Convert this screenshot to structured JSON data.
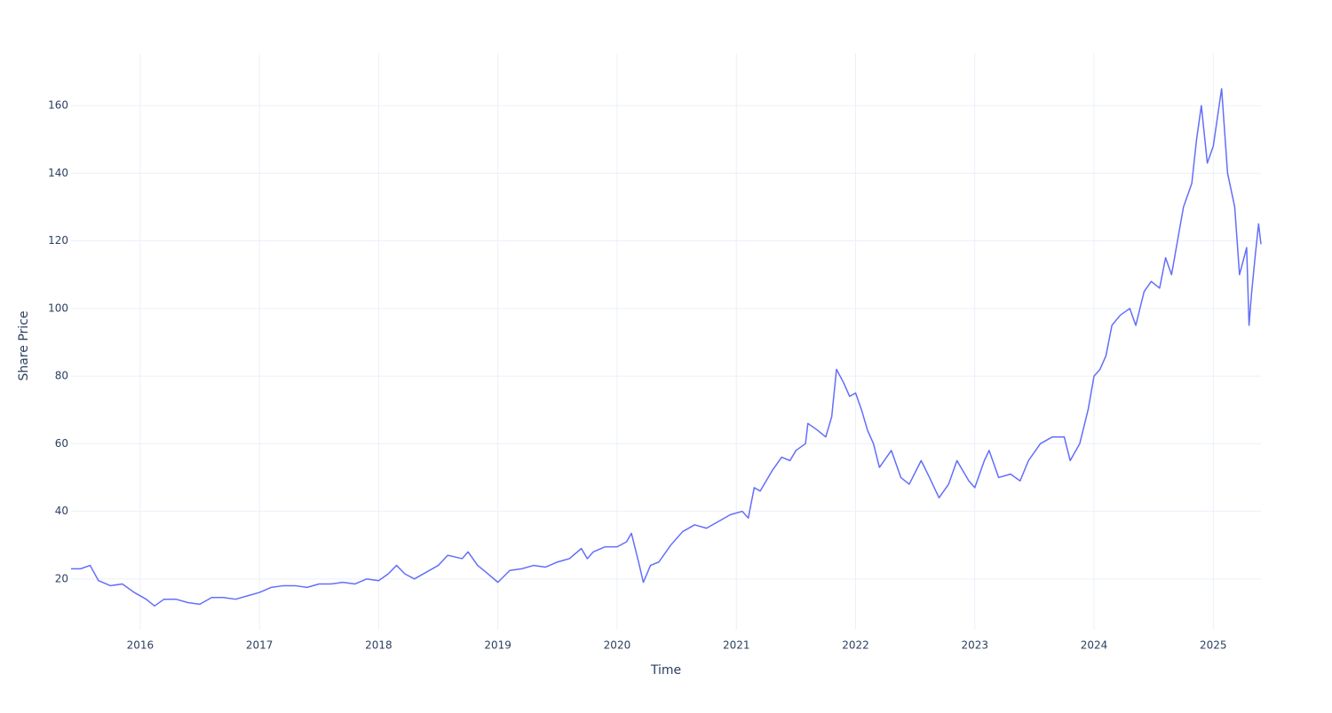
{
  "chart_data": {
    "type": "line",
    "x_label": "Time",
    "y_label": "Share Price",
    "color": "#636efa",
    "grid": true,
    "xlim": [
      2015.42,
      2025.4
    ],
    "ylim": [
      5,
      175.5
    ],
    "xticks": [
      2016,
      2017,
      2018,
      2019,
      2020,
      2021,
      2022,
      2023,
      2024,
      2025
    ],
    "yticks": [
      20,
      40,
      60,
      80,
      100,
      120,
      140,
      160
    ],
    "x": [
      2015.42,
      2015.5,
      2015.58,
      2015.65,
      2015.75,
      2015.85,
      2015.95,
      2016.05,
      2016.12,
      2016.2,
      2016.3,
      2016.4,
      2016.5,
      2016.6,
      2016.7,
      2016.8,
      2016.9,
      2017.0,
      2017.1,
      2017.2,
      2017.3,
      2017.4,
      2017.5,
      2017.6,
      2017.7,
      2017.8,
      2017.9,
      2018.0,
      2018.08,
      2018.15,
      2018.22,
      2018.3,
      2018.4,
      2018.5,
      2018.58,
      2018.7,
      2018.75,
      2018.83,
      2018.9,
      2019.0,
      2019.1,
      2019.2,
      2019.3,
      2019.4,
      2019.5,
      2019.6,
      2019.7,
      2019.75,
      2019.8,
      2019.9,
      2020.0,
      2020.08,
      2020.12,
      2020.18,
      2020.22,
      2020.28,
      2020.35,
      2020.45,
      2020.55,
      2020.65,
      2020.75,
      2020.85,
      2020.95,
      2021.05,
      2021.1,
      2021.15,
      2021.2,
      2021.3,
      2021.38,
      2021.45,
      2021.5,
      2021.58,
      2021.6,
      2021.68,
      2021.75,
      2021.8,
      2021.84,
      2021.9,
      2021.95,
      2022.0,
      2022.05,
      2022.1,
      2022.15,
      2022.2,
      2022.3,
      2022.38,
      2022.45,
      2022.55,
      2022.62,
      2022.7,
      2022.78,
      2022.85,
      2022.95,
      2023.0,
      2023.08,
      2023.12,
      2023.2,
      2023.3,
      2023.38,
      2023.45,
      2023.55,
      2023.65,
      2023.75,
      2023.8,
      2023.88,
      2023.95,
      2024.0,
      2024.05,
      2024.1,
      2024.15,
      2024.22,
      2024.3,
      2024.35,
      2024.42,
      2024.48,
      2024.55,
      2024.6,
      2024.65,
      2024.7,
      2024.75,
      2024.82,
      2024.86,
      2024.9,
      2024.95,
      2025.0,
      2025.07,
      2025.12,
      2025.18,
      2025.22,
      2025.28,
      2025.3,
      2025.32,
      2025.35,
      2025.38,
      2025.4
    ],
    "values": [
      23,
      23,
      24,
      19.5,
      18,
      18.5,
      16,
      14,
      12,
      14,
      14,
      13,
      12.5,
      14.5,
      14.5,
      14,
      15,
      16,
      17.5,
      18,
      18,
      17.5,
      18.5,
      18.5,
      19,
      18.5,
      20,
      19.5,
      21.5,
      24,
      21.5,
      20,
      22,
      24,
      27,
      26,
      28,
      24,
      22,
      19,
      22.5,
      23,
      24,
      23.5,
      25,
      26,
      29,
      26,
      28,
      29.5,
      29.5,
      31,
      33.5,
      25,
      19,
      24,
      25,
      30,
      34,
      36,
      35,
      37,
      39,
      40,
      38,
      47,
      46,
      52,
      56,
      55,
      58,
      60,
      66,
      64,
      62,
      68,
      82,
      78,
      74,
      75,
      70,
      64,
      60,
      53,
      58,
      50,
      48,
      55,
      50,
      44,
      48,
      55,
      49,
      47,
      55,
      58,
      50,
      51,
      49,
      55,
      60,
      62,
      62,
      55,
      60,
      70,
      80,
      82,
      86,
      95,
      98,
      100,
      95,
      105,
      108,
      106,
      115,
      110,
      120,
      130,
      137,
      150,
      160,
      143,
      148,
      165,
      140,
      130,
      110,
      118,
      95,
      104,
      115,
      125,
      119
    ]
  }
}
